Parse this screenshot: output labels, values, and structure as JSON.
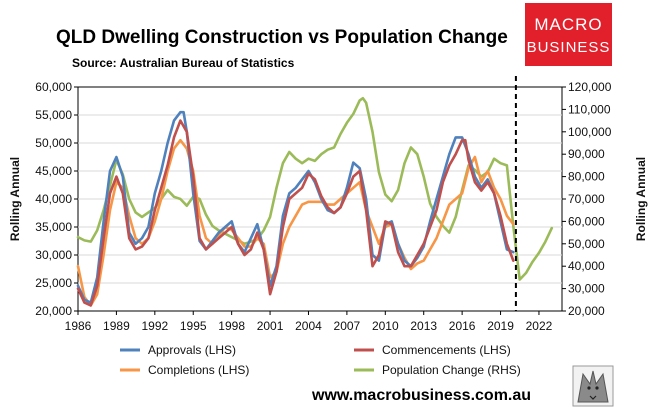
{
  "chart_data": {
    "type": "line",
    "title": "QLD Dwelling Construction vs Population Change",
    "subtitle": "Source: Australian Bureau of Statistics",
    "ylabel_left": "Rolling Annual",
    "ylabel_right": "Rolling Annual",
    "xlim": [
      1986,
      2023.8
    ],
    "ylim_left": [
      20000,
      60000
    ],
    "ylim_right": [
      20000,
      120000
    ],
    "x_ticks": [
      1986,
      1989,
      1992,
      1995,
      1998,
      2001,
      2004,
      2007,
      2010,
      2013,
      2016,
      2019,
      2022
    ],
    "x_tick_labels": [
      "1986",
      "1989",
      "1992",
      "1995",
      "1998",
      "2001",
      "2004",
      "2007",
      "2010",
      "2013",
      "2016",
      "2019",
      "2022"
    ],
    "y_ticks_left": [
      20000,
      25000,
      30000,
      35000,
      40000,
      45000,
      50000,
      55000,
      60000
    ],
    "y_tick_labels_left": [
      "20,000",
      "25,000",
      "30,000",
      "35,000",
      "40,000",
      "45,000",
      "50,000",
      "55,000",
      "60,000"
    ],
    "y_ticks_right": [
      20000,
      30000,
      40000,
      50000,
      60000,
      70000,
      80000,
      90000,
      100000,
      110000,
      120000
    ],
    "y_tick_labels_right": [
      "20,000",
      "30,000",
      "40,000",
      "50,000",
      "60,000",
      "70,000",
      "80,000",
      "90,000",
      "100,000",
      "110,000",
      "120,000"
    ],
    "vline_x": 2020.2,
    "series": [
      {
        "name": "Approvals (LHS)",
        "axis": "left",
        "color": "#4f81bd",
        "x": [
          1986.0,
          1986.5,
          1987.0,
          1987.5,
          1988.0,
          1988.5,
          1989.0,
          1989.5,
          1990.0,
          1990.5,
          1991.0,
          1991.5,
          1992.0,
          1992.5,
          1993.0,
          1993.5,
          1994.0,
          1994.25,
          1994.5,
          1995.0,
          1995.5,
          1996.0,
          1996.5,
          1997.0,
          1997.5,
          1998.0,
          1998.5,
          1999.0,
          1999.5,
          2000.0,
          2000.5,
          2001.0,
          2001.5,
          2002.0,
          2002.5,
          2003.0,
          2003.5,
          2004.0,
          2004.5,
          2005.0,
          2005.5,
          2006.0,
          2006.5,
          2007.0,
          2007.5,
          2008.0,
          2008.5,
          2009.0,
          2009.5,
          2010.0,
          2010.5,
          2011.0,
          2011.5,
          2012.0,
          2012.5,
          2013.0,
          2013.5,
          2014.0,
          2014.5,
          2015.0,
          2015.5,
          2016.0,
          2016.5,
          2017.0,
          2017.5,
          2018.0,
          2018.5,
          2019.0,
          2019.5,
          2020.0
        ],
        "y": [
          24500,
          22000,
          21500,
          26000,
          36000,
          45000,
          47500,
          44000,
          34000,
          32000,
          33000,
          35000,
          41000,
          45000,
          50000,
          54000,
          55500,
          55500,
          52000,
          41000,
          32500,
          31000,
          32500,
          34000,
          35000,
          36000,
          32000,
          30500,
          33000,
          35500,
          31000,
          24500,
          28000,
          37000,
          41000,
          42000,
          43500,
          45000,
          43000,
          40000,
          38000,
          37500,
          38500,
          42000,
          46500,
          45500,
          40000,
          30000,
          29000,
          35500,
          36000,
          32000,
          29000,
          28000,
          29500,
          31500,
          36000,
          40000,
          44000,
          48000,
          51000,
          51000,
          48000,
          44000,
          42000,
          43500,
          41000,
          36000,
          31000,
          30500
        ]
      },
      {
        "name": "Commencements (LHS)",
        "axis": "left",
        "color": "#c0504d",
        "x": [
          1986.0,
          1986.5,
          1987.0,
          1987.5,
          1988.0,
          1988.5,
          1989.0,
          1989.5,
          1990.0,
          1990.5,
          1991.0,
          1991.5,
          1992.0,
          1992.5,
          1993.0,
          1993.5,
          1994.0,
          1994.5,
          1995.0,
          1995.5,
          1996.0,
          1996.5,
          1997.0,
          1997.5,
          1998.0,
          1998.5,
          1999.0,
          1999.5,
          2000.0,
          2000.5,
          2001.0,
          2001.5,
          2002.0,
          2002.5,
          2003.0,
          2003.5,
          2004.0,
          2004.5,
          2005.0,
          2005.5,
          2006.0,
          2006.5,
          2007.0,
          2007.5,
          2008.0,
          2008.5,
          2009.0,
          2009.5,
          2010.0,
          2010.5,
          2011.0,
          2011.5,
          2012.0,
          2012.5,
          2013.0,
          2013.5,
          2014.0,
          2014.5,
          2015.0,
          2015.5,
          2016.0,
          2016.25,
          2016.5,
          2017.0,
          2017.5,
          2018.0,
          2018.5,
          2019.0,
          2019.5,
          2020.0
        ],
        "y": [
          24000,
          21500,
          21000,
          24500,
          33000,
          41000,
          44000,
          41000,
          33000,
          31000,
          31500,
          33000,
          38000,
          42000,
          46000,
          51000,
          54000,
          52000,
          44000,
          33000,
          31000,
          32000,
          33000,
          34000,
          35000,
          32000,
          30000,
          31000,
          34000,
          31000,
          23000,
          27000,
          35000,
          40000,
          41000,
          42000,
          44500,
          43500,
          40500,
          38500,
          37500,
          38500,
          41000,
          44000,
          45000,
          38000,
          28000,
          30000,
          36000,
          35500,
          30500,
          28000,
          28000,
          30000,
          32000,
          35000,
          38000,
          43000,
          46000,
          48000,
          50500,
          50500,
          47000,
          43000,
          41500,
          43000,
          41000,
          37000,
          32000,
          29000
        ]
      },
      {
        "name": "Completions (LHS)",
        "axis": "left",
        "color": "#f79646",
        "x": [
          1986.0,
          1986.5,
          1987.0,
          1987.5,
          1988.0,
          1988.5,
          1989.0,
          1989.5,
          1990.0,
          1990.5,
          1991.0,
          1991.5,
          1992.0,
          1992.5,
          1993.0,
          1993.5,
          1994.0,
          1994.5,
          1995.0,
          1995.5,
          1996.0,
          1996.5,
          1997.0,
          1997.5,
          1998.0,
          1998.5,
          1999.0,
          1999.5,
          2000.0,
          2000.5,
          2001.0,
          2001.5,
          2002.0,
          2002.5,
          2003.0,
          2003.5,
          2004.0,
          2004.5,
          2005.0,
          2005.5,
          2006.0,
          2006.5,
          2007.0,
          2007.5,
          2008.0,
          2008.5,
          2009.0,
          2009.5,
          2010.0,
          2010.5,
          2011.0,
          2011.5,
          2012.0,
          2012.5,
          2013.0,
          2013.5,
          2014.0,
          2014.5,
          2015.0,
          2015.5,
          2016.0,
          2016.5,
          2017.0,
          2017.5,
          2018.0,
          2018.5,
          2019.0,
          2019.5,
          2020.0
        ],
        "y": [
          28000,
          22500,
          21000,
          23000,
          30000,
          38000,
          43000,
          42000,
          37000,
          33000,
          32000,
          33000,
          36000,
          40000,
          45000,
          49000,
          50500,
          49000,
          45000,
          37000,
          33000,
          32000,
          33500,
          35000,
          34500,
          33000,
          31500,
          31500,
          33000,
          32000,
          26000,
          27000,
          32000,
          35000,
          37000,
          39000,
          39500,
          39500,
          39500,
          39000,
          39000,
          40000,
          41000,
          42000,
          43000,
          38000,
          35000,
          32000,
          35000,
          35500,
          32000,
          29500,
          27500,
          28500,
          29000,
          31000,
          33000,
          36000,
          39000,
          40000,
          41000,
          45500,
          47500,
          43000,
          45000,
          42000,
          40000,
          37000,
          35500
        ]
      },
      {
        "name": "Population Change (RHS)",
        "axis": "right",
        "color": "#9bbb59",
        "x": [
          1986.0,
          1986.5,
          1987.0,
          1987.5,
          1988.0,
          1988.5,
          1989.0,
          1989.5,
          1990.0,
          1990.5,
          1991.0,
          1991.5,
          1992.0,
          1992.5,
          1993.0,
          1993.5,
          1994.0,
          1994.5,
          1995.0,
          1995.5,
          1996.0,
          1996.5,
          1997.0,
          1997.5,
          1998.0,
          1998.5,
          1999.0,
          1999.5,
          2000.0,
          2000.5,
          2001.0,
          2001.5,
          2002.0,
          2002.5,
          2003.0,
          2003.5,
          2004.0,
          2004.5,
          2005.0,
          2005.5,
          2006.0,
          2006.5,
          2007.0,
          2007.5,
          2008.0,
          2008.25,
          2008.5,
          2009.0,
          2009.5,
          2010.0,
          2010.5,
          2011.0,
          2011.5,
          2012.0,
          2012.5,
          2013.0,
          2013.5,
          2014.0,
          2014.5,
          2015.0,
          2015.5,
          2016.0,
          2016.5,
          2017.0,
          2017.5,
          2018.0,
          2018.5,
          2019.0,
          2019.5,
          2020.0,
          2020.5,
          2021.0,
          2021.5,
          2022.0,
          2022.5,
          2023.0
        ],
        "y": [
          53000,
          51500,
          51000,
          56000,
          65000,
          76000,
          87500,
          81000,
          70000,
          64000,
          62000,
          64000,
          66000,
          70000,
          74000,
          71000,
          70000,
          67000,
          71000,
          70000,
          63000,
          58000,
          56000,
          54500,
          53000,
          51500,
          50000,
          51000,
          52000,
          56000,
          62000,
          75000,
          86000,
          91000,
          88000,
          86000,
          88000,
          87000,
          90000,
          92000,
          93000,
          99000,
          104000,
          108000,
          114000,
          115000,
          113000,
          100000,
          82000,
          72000,
          69000,
          74000,
          86000,
          93000,
          90000,
          80000,
          68000,
          62000,
          58000,
          55000,
          62000,
          74000,
          85000,
          83000,
          80000,
          82000,
          88000,
          86000,
          85000,
          58000,
          34000,
          37000,
          42000,
          46000,
          51000,
          57000
        ]
      }
    ],
    "legend": [
      "Approvals (LHS)",
      "Commencements (LHS)",
      "Completions (LHS)",
      "Population Change (RHS)"
    ]
  },
  "branding": {
    "logo_line1": "MACRO",
    "logo_line2": "BUSINESS",
    "logo_color": "#e2202c",
    "website": "www.macrobusiness.com.au"
  }
}
